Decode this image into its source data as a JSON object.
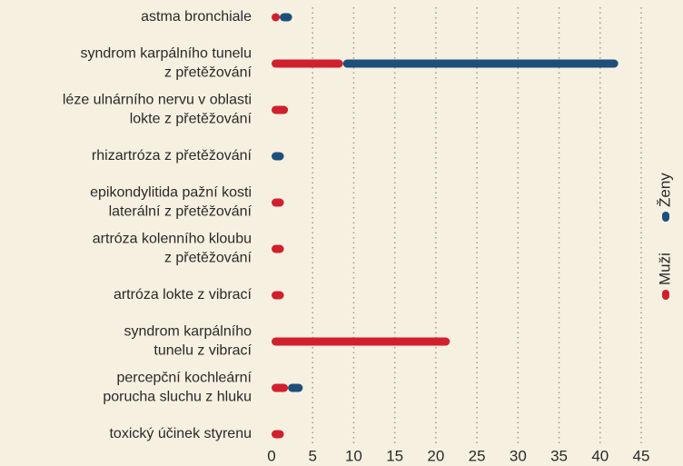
{
  "chart_data": {
    "type": "bar",
    "orientation": "horizontal",
    "stacked": true,
    "categories": [
      [
        "astma bronchiale"
      ],
      [
        "syndrom karpálního tunelu",
        "z přetěžování"
      ],
      [
        "léze ulnárního nervu v oblasti",
        "lokte z přetěžování"
      ],
      [
        "rhizartróza z přetěžování"
      ],
      [
        "epikondylitida pažní kosti",
        "laterální z přetěžování"
      ],
      [
        "artróza kolenního kloubu",
        "z přetěžování"
      ],
      [
        "artróza lokte z vibrací"
      ],
      [
        "syndrom karpálního",
        "tunelu z vibrací"
      ],
      [
        "percepční kochleární",
        "porucha sluchu z hluku"
      ],
      [
        "toxický účinek styrenu"
      ]
    ],
    "series": [
      {
        "name": "Muži",
        "color": "#d0202e",
        "values": [
          1,
          8.7,
          2,
          0,
          1.5,
          1.5,
          1.5,
          21.7,
          2,
          1.5
        ]
      },
      {
        "name": "Ženy",
        "color": "#1d4f7a",
        "values": [
          1.5,
          33.5,
          0,
          1.5,
          0,
          0,
          0,
          0,
          1.8,
          0
        ]
      }
    ],
    "xlim": [
      0,
      45
    ],
    "xticks": [
      0,
      5,
      10,
      15,
      20,
      25,
      30,
      35,
      40,
      45
    ],
    "grid": true
  }
}
